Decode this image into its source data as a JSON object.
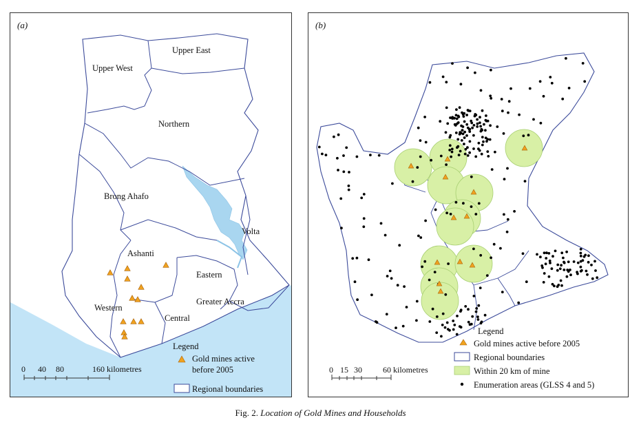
{
  "panel_a": {
    "tag": "(a)",
    "regions": [
      "Upper West",
      "Upper East",
      "Northern",
      "Brong Ahafo",
      "Ashanti",
      "Volta",
      "Eastern",
      "Greater Accra",
      "Western",
      "Central"
    ],
    "scale": {
      "ticks": [
        "0",
        "40",
        "80",
        "160 kilometres"
      ]
    },
    "legend": {
      "title": "Legend",
      "mines_line1": "Gold mines active",
      "mines_line2": "before 2005",
      "boundaries": "Regional boundaries"
    }
  },
  "panel_b": {
    "tag": "(b)",
    "scale": {
      "ticks": [
        "0",
        "15",
        "30",
        "60 kilometres"
      ]
    },
    "legend": {
      "title": "Legend",
      "mines": "Gold mines active before 2005",
      "boundaries": "Regional boundaries",
      "buffer": "Within 20 km of mine",
      "enumeration": "Enumeration areas (GLSS 4 and 5)"
    }
  },
  "caption": {
    "prefix": "Fig. 2.",
    "title": "Location of Gold Mines and Households"
  },
  "colors": {
    "sea": "#c2e4f7",
    "river": "#a9d6f0",
    "boundary": "#3b4a9a",
    "mine": "#f0a21f",
    "mine_outline": "#a8620a",
    "buffer": "#d8f0a6",
    "buffer_outline": "#a8cf72",
    "enumeration_point": "#000000"
  }
}
